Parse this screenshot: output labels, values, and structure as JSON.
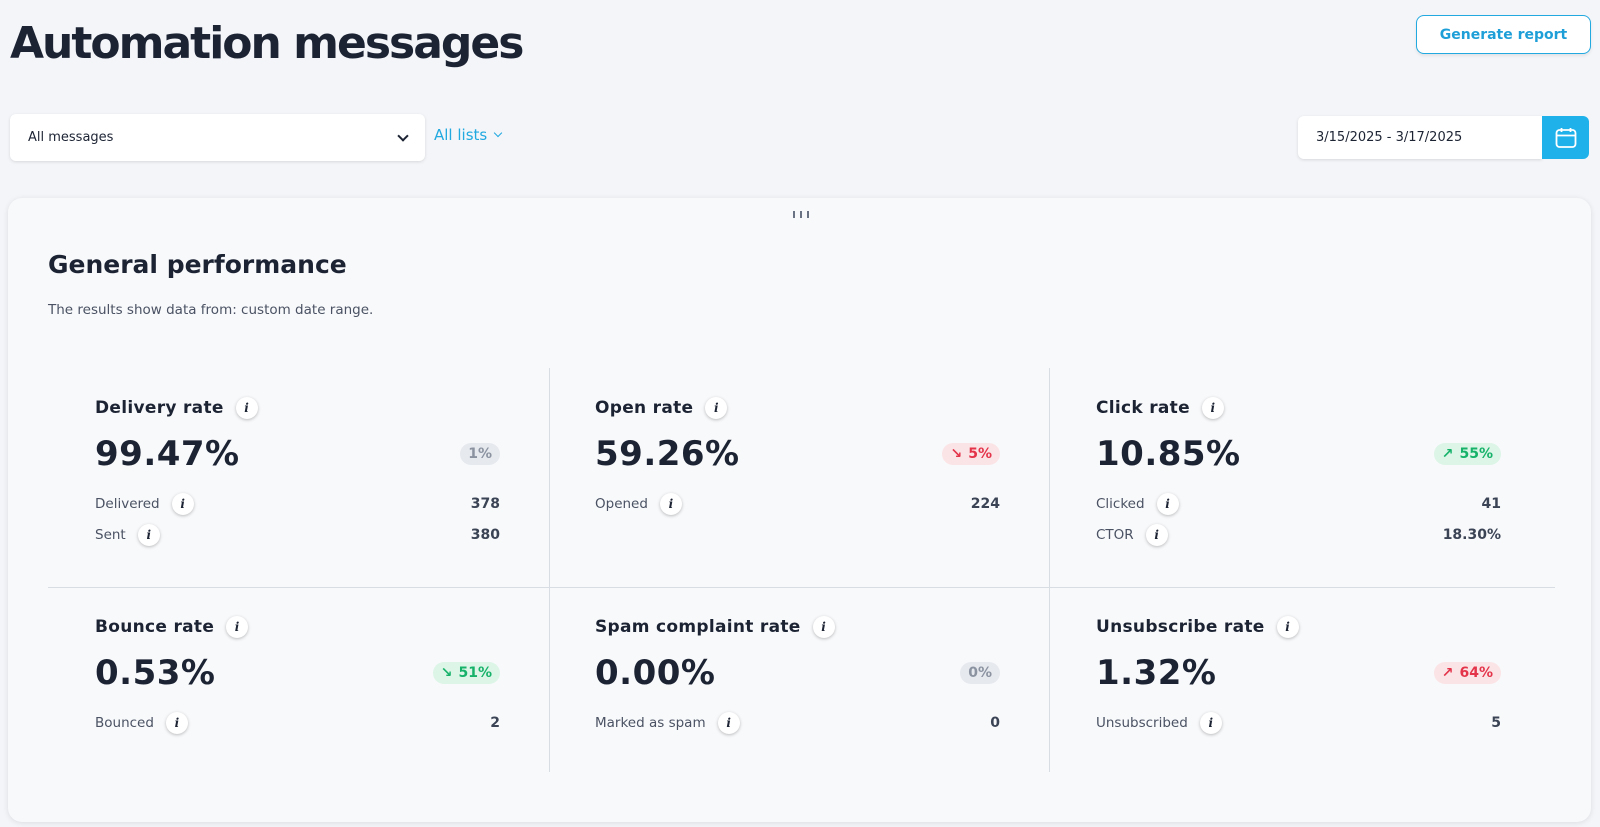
{
  "header": {
    "title": "Automation messages",
    "generate_report_label": "Generate report"
  },
  "filters": {
    "messages_selected": "All messages",
    "lists_label": "All lists",
    "date_range": "3/15/2025 - 3/17/2025"
  },
  "panel": {
    "title": "General performance",
    "subtitle": "The results show data from: custom date range.",
    "metrics": [
      {
        "label": "Delivery rate",
        "value": "99.47%",
        "change": "1%",
        "trend": "neutral",
        "rows": [
          {
            "label": "Delivered",
            "value": "378"
          },
          {
            "label": "Sent",
            "value": "380"
          }
        ]
      },
      {
        "label": "Open rate",
        "value": "59.26%",
        "change": "5%",
        "trend": "down-bad",
        "rows": [
          {
            "label": "Opened",
            "value": "224"
          }
        ]
      },
      {
        "label": "Click rate",
        "value": "10.85%",
        "change": "55%",
        "trend": "up-good",
        "rows": [
          {
            "label": "Clicked",
            "value": "41"
          },
          {
            "label": "CTOR",
            "value": "18.30%"
          }
        ]
      },
      {
        "label": "Bounce rate",
        "value": "0.53%",
        "change": "51%",
        "trend": "down-good",
        "rows": [
          {
            "label": "Bounced",
            "value": "2"
          }
        ]
      },
      {
        "label": "Spam complaint rate",
        "value": "0.00%",
        "change": "0%",
        "trend": "neutral",
        "rows": [
          {
            "label": "Marked as spam",
            "value": "0"
          }
        ]
      },
      {
        "label": "Unsubscribe rate",
        "value": "1.32%",
        "change": "64%",
        "trend": "up-bad",
        "rows": [
          {
            "label": "Unsubscribed",
            "value": "5"
          }
        ]
      }
    ]
  },
  "colors": {
    "accent": "#22a9e0",
    "good": "#17b26a",
    "bad": "#e3344a",
    "neutral": "#8b93a1"
  },
  "icons": {
    "info": "info-icon",
    "calendar": "calendar-icon",
    "chevron": "chevron-down-icon"
  }
}
